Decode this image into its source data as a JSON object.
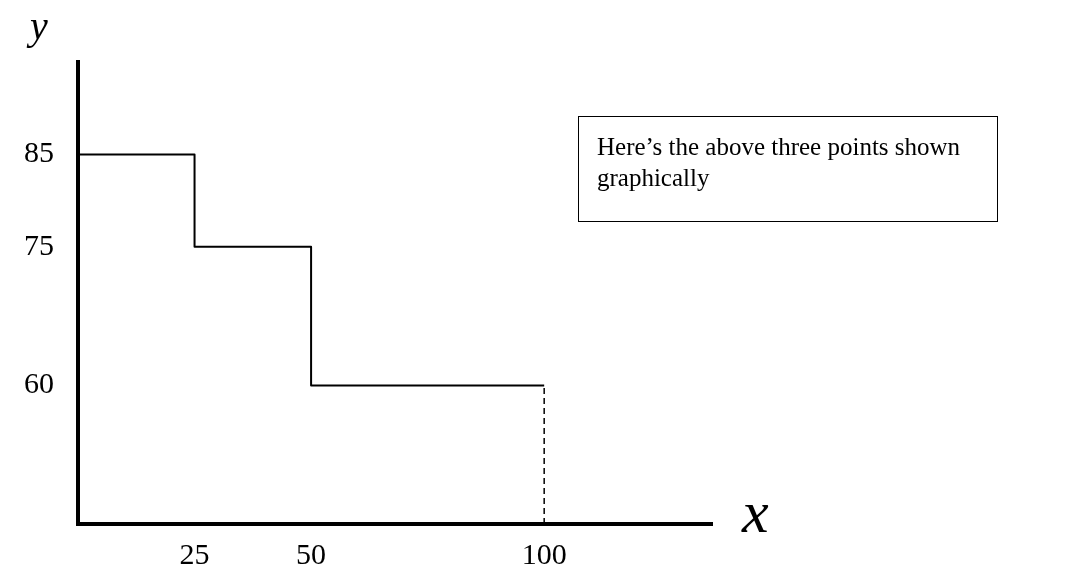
{
  "chart_data": {
    "type": "step",
    "xlabel": "x",
    "ylabel": "y",
    "x": [
      0,
      25,
      50,
      100
    ],
    "series": [
      {
        "color": "#000000",
        "values": [
          85,
          75,
          60,
          60
        ]
      }
    ],
    "xlim": [
      0,
      136
    ],
    "xticks": [
      25,
      50,
      100
    ],
    "ylim": [
      45,
      95
    ],
    "yticks": [
      60,
      75,
      85
    ],
    "grid": false,
    "legend": false,
    "marker": "none",
    "line_style": "solid",
    "ref_lines": [
      {
        "axis": "x",
        "value": 100,
        "line_style": "dashed",
        "color": "#000000"
      }
    ],
    "annotations": [
      "Here’s the above three points shown graphically"
    ]
  }
}
